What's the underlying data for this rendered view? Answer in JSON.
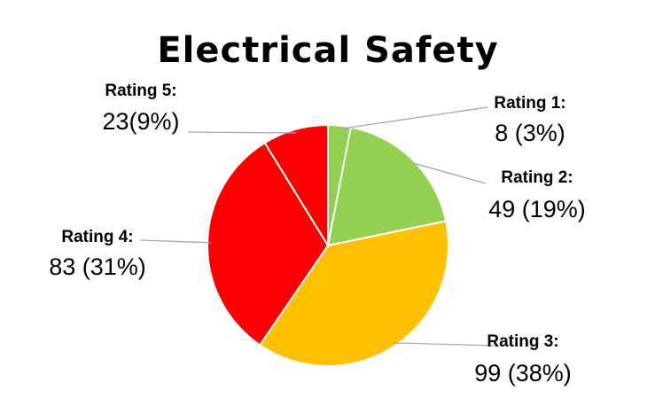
{
  "chart_data": {
    "type": "pie",
    "title": "Electrical Safety",
    "slices": [
      {
        "label": "Rating 1:",
        "value": 8,
        "value_text": "8 (3%)",
        "color": "#92d050"
      },
      {
        "label": "Rating 2:",
        "value": 49,
        "value_text": "49 (19%)",
        "color": "#92d050"
      },
      {
        "label": "Rating 3:",
        "value": 99,
        "value_text": "99 (38%)",
        "color": "#ffc000"
      },
      {
        "label": "Rating 4:",
        "value": 83,
        "value_text": "83 (31%)",
        "color": "#ff0000"
      },
      {
        "label": "Rating 5:",
        "value": 23,
        "value_text": "23(9%)",
        "color": "#ff0000"
      }
    ],
    "start_angle_deg": 0,
    "direction": "clockwise",
    "legend": "none",
    "data_labels": "outside with leader lines"
  }
}
